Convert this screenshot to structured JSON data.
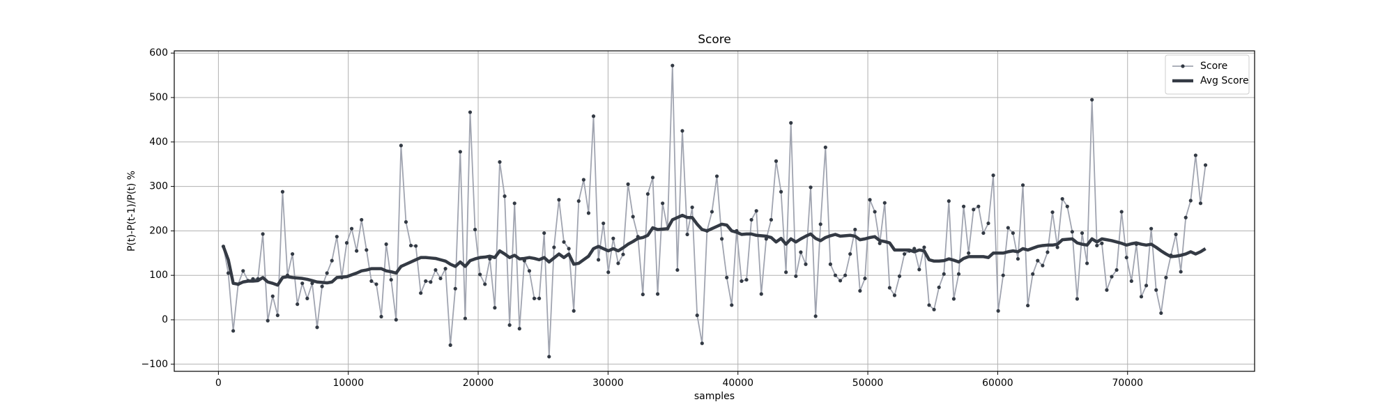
{
  "chart_data": {
    "type": "line",
    "title": "Score",
    "xlabel": "samples",
    "ylabel": "P(t)-P(t-1)/P(t) %",
    "x": [
      380,
      760,
      1140,
      1520,
      1900,
      2280,
      2660,
      3040,
      3420,
      3800,
      4180,
      4560,
      4940,
      5320,
      5700,
      6080,
      6460,
      6840,
      7220,
      7600,
      7980,
      8360,
      8740,
      9120,
      9500,
      9880,
      10260,
      10640,
      11020,
      11400,
      11780,
      12160,
      12540,
      12920,
      13300,
      13680,
      14060,
      14440,
      14820,
      15200,
      15580,
      15960,
      16340,
      16720,
      17100,
      17480,
      17860,
      18240,
      18620,
      19000,
      19380,
      19760,
      20140,
      20520,
      20900,
      21280,
      21660,
      22040,
      22420,
      22800,
      23180,
      23560,
      23940,
      24320,
      24700,
      25080,
      25460,
      25840,
      26220,
      26600,
      26980,
      27360,
      27740,
      28120,
      28500,
      28880,
      29260,
      29640,
      30020,
      30400,
      30780,
      31160,
      31540,
      31920,
      32300,
      32680,
      33060,
      33440,
      33820,
      34200,
      34580,
      34960,
      35340,
      35720,
      36100,
      36480,
      36860,
      37240,
      37620,
      38000,
      38380,
      38760,
      39140,
      39520,
      39900,
      40280,
      40660,
      41040,
      41420,
      41800,
      42180,
      42560,
      42940,
      43320,
      43700,
      44080,
      44460,
      44840,
      45220,
      45600,
      45980,
      46360,
      46740,
      47120,
      47500,
      47880,
      48260,
      48640,
      49020,
      49400,
      49780,
      50160,
      50540,
      50920,
      51300,
      51680,
      52060,
      52440,
      52820,
      53200,
      53580,
      53960,
      54340,
      54720,
      55100,
      55480,
      55860,
      56240,
      56620,
      57000,
      57380,
      57760,
      58140,
      58520,
      58900,
      59280,
      59660,
      60040,
      60420,
      60800,
      61180,
      61560,
      61940,
      62320,
      62700,
      63080,
      63460,
      63840,
      64220,
      64600,
      64980,
      65360,
      65740,
      66120,
      66500,
      66880,
      67260,
      67640,
      68020,
      68400,
      68780,
      69160,
      69540,
      69920,
      70300,
      70680,
      71060,
      71440,
      71820,
      72200,
      72580,
      72960,
      73340,
      73720,
      74100,
      74480,
      74860,
      75240,
      75620,
      76000
    ],
    "series": [
      {
        "name": "Score",
        "color": "#a0a4b0",
        "marker_color": "#333a44",
        "values": [
          165,
          105,
          -25,
          80,
          110,
          88,
          92,
          92,
          193,
          -2,
          53,
          10,
          288,
          100,
          148,
          35,
          82,
          48,
          82,
          -17,
          75,
          105,
          133,
          187,
          95,
          173,
          205,
          155,
          225,
          157,
          87,
          80,
          7,
          170,
          90,
          0,
          392,
          220,
          167,
          166,
          60,
          87,
          85,
          112,
          93,
          115,
          -57,
          70,
          378,
          3,
          467,
          203,
          102,
          80,
          137,
          27,
          355,
          278,
          -12,
          262,
          -20,
          133,
          110,
          48,
          48,
          195,
          -83,
          163,
          270,
          175,
          160,
          20,
          267,
          315,
          240,
          458,
          135,
          217,
          107,
          183,
          127,
          147,
          305,
          232,
          187,
          57,
          283,
          320,
          58,
          262,
          205,
          572,
          112,
          425,
          192,
          253,
          10,
          -53,
          200,
          243,
          323,
          182,
          95,
          33,
          200,
          87,
          90,
          225,
          245,
          58,
          182,
          225,
          357,
          288,
          107,
          443,
          98,
          152,
          125,
          298,
          8,
          215,
          388,
          125,
          100,
          88,
          100,
          148,
          203,
          65,
          93,
          270,
          243,
          172,
          263,
          72,
          55,
          98,
          148,
          155,
          160,
          113,
          163,
          33,
          23,
          73,
          103,
          267,
          47,
          103,
          255,
          150,
          248,
          255,
          195,
          217,
          325,
          20,
          100,
          207,
          195,
          137,
          303,
          32,
          103,
          133,
          122,
          152,
          242,
          163,
          272,
          255,
          198,
          47,
          195,
          127,
          495,
          167,
          172,
          67,
          97,
          112,
          243,
          140,
          87,
          170,
          52,
          77,
          205,
          67,
          15,
          95,
          145,
          192,
          108,
          230,
          268,
          370,
          262,
          348
        ]
      },
      {
        "name": "Avg Score",
        "color": "#343a44",
        "values": [
          165,
          135,
          82,
          80,
          85,
          87,
          87,
          88,
          95,
          85,
          82,
          78,
          95,
          97,
          95,
          94,
          93,
          91,
          88,
          85,
          84,
          83,
          85,
          95,
          96,
          97,
          101,
          105,
          110,
          112,
          115,
          115,
          115,
          110,
          108,
          105,
          120,
          125,
          130,
          135,
          140,
          140,
          139,
          138,
          135,
          132,
          125,
          120,
          130,
          120,
          133,
          137,
          140,
          141,
          143,
          140,
          155,
          148,
          140,
          145,
          137,
          138,
          140,
          138,
          135,
          140,
          130,
          139,
          148,
          140,
          148,
          125,
          127,
          135,
          143,
          160,
          165,
          160,
          155,
          160,
          155,
          162,
          170,
          176,
          183,
          185,
          190,
          207,
          203,
          204,
          205,
          225,
          230,
          235,
          230,
          230,
          215,
          203,
          200,
          205,
          210,
          215,
          213,
          200,
          197,
          192,
          193,
          193,
          190,
          189,
          188,
          185,
          175,
          183,
          170,
          182,
          175,
          182,
          188,
          193,
          183,
          178,
          185,
          189,
          192,
          188,
          189,
          190,
          188,
          180,
          182,
          185,
          187,
          178,
          176,
          173,
          157,
          157,
          157,
          157,
          153,
          157,
          155,
          135,
          132,
          132,
          133,
          137,
          134,
          130,
          138,
          142,
          142,
          142,
          142,
          140,
          150,
          150,
          150,
          153,
          155,
          153,
          160,
          157,
          161,
          165,
          167,
          168,
          168,
          170,
          180,
          181,
          182,
          173,
          170,
          168,
          182,
          175,
          182,
          180,
          178,
          175,
          172,
          168,
          171,
          173,
          170,
          168,
          170,
          163,
          155,
          148,
          142,
          143,
          145,
          148,
          153,
          148,
          153,
          160
        ]
      }
    ],
    "xlim": [
      -3401,
      79781
    ],
    "ylim": [
      -116,
      605
    ],
    "xticks": [
      0,
      10000,
      20000,
      30000,
      40000,
      50000,
      60000,
      70000
    ],
    "yticks": [
      {
        "value": -100,
        "label": "−100"
      },
      0,
      100,
      200,
      300,
      400,
      500,
      600
    ],
    "grid": true,
    "legend": "upper right"
  }
}
